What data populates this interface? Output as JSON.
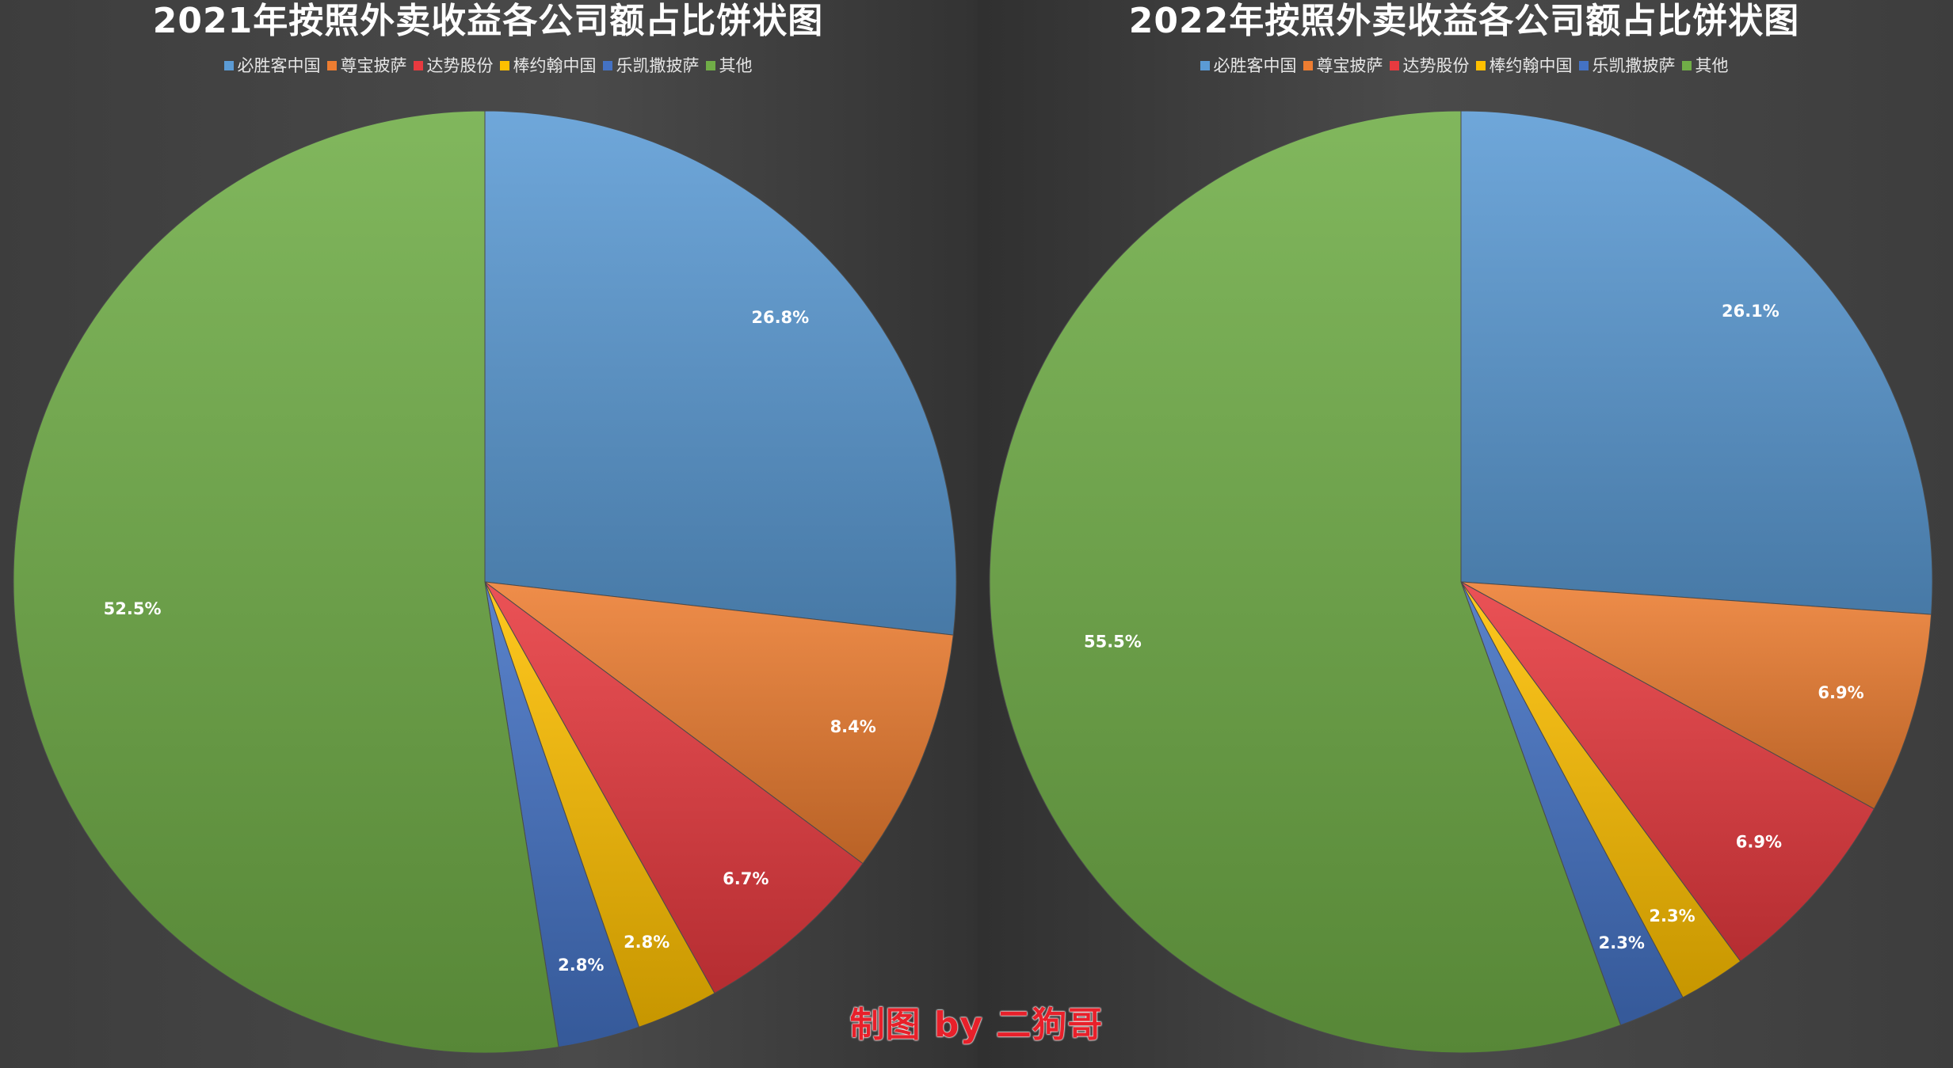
{
  "chart_data": [
    {
      "type": "pie",
      "title": "2021年按照外卖收益各公司额占比饼状图",
      "legend_position": "top",
      "categories": [
        "必胜客中国",
        "尊宝披萨",
        "达势股份",
        "棒约翰中国",
        "乐凯撒披萨",
        "其他"
      ],
      "values": [
        26.8,
        8.4,
        6.7,
        2.8,
        2.8,
        52.5
      ],
      "value_labels": [
        "26.8%",
        "8.4%",
        "6.7%",
        "2.8%",
        "2.8%",
        "52.5%"
      ],
      "colors": [
        "#5b9bd5",
        "#ed7d31",
        "#e83a3f",
        "#ffc000",
        "#4472c4",
        "#70ad47"
      ]
    },
    {
      "type": "pie",
      "title": "2022年按照外卖收益各公司额占比饼状图",
      "legend_position": "top",
      "categories": [
        "必胜客中国",
        "尊宝披萨",
        "达势股份",
        "棒约翰中国",
        "乐凯撒披萨",
        "其他"
      ],
      "values": [
        26.1,
        6.9,
        6.9,
        2.3,
        2.3,
        55.5
      ],
      "value_labels": [
        "26.1%",
        "6.9%",
        "6.9%",
        "2.3%",
        "2.3%",
        "55.5%"
      ],
      "colors": [
        "#5b9bd5",
        "#ed7d31",
        "#e83a3f",
        "#ffc000",
        "#4472c4",
        "#70ad47"
      ]
    }
  ],
  "watermark": "制图 by 二狗哥",
  "background_color": "#3a3a3a"
}
